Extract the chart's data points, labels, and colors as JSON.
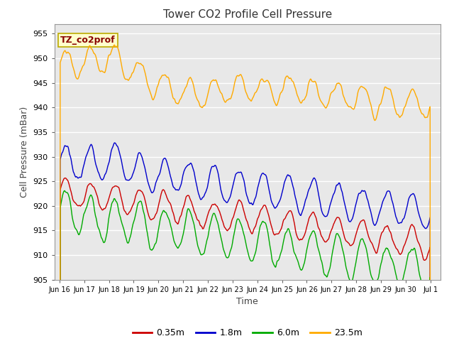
{
  "title": "Tower CO2 Profile Cell Pressure",
  "xlabel": "Time",
  "ylabel": "Cell Pressure (mBar)",
  "ylim": [
    905,
    957
  ],
  "yticks": [
    905,
    910,
    915,
    920,
    925,
    930,
    935,
    940,
    945,
    950,
    955
  ],
  "annotation_text": "TZ_co2prof",
  "annotation_text_color": "#880000",
  "annotation_bg": "#ffffcc",
  "annotation_edge": "#bbaa00",
  "bg_color": "#e8e8e8",
  "plot_bg": "#e8e8e8",
  "legend_entries": [
    "0.35m",
    "1.8m",
    "6.0m",
    "23.5m"
  ],
  "legend_colors": [
    "#cc0000",
    "#0000cc",
    "#00aa00",
    "#ffaa00"
  ],
  "line_width": 1.0,
  "x_tick_labels": [
    "Jun 16",
    "Jun 17",
    "Jun 18",
    "Jun 19",
    "Jun 20",
    "Jun 21",
    "Jun 22",
    "Jun 23",
    "Jun 24",
    "Jun 25",
    "Jun 26",
    "Jun 27",
    "Jun 28",
    "Jun 29",
    "Jun 30",
    "Jul 1"
  ],
  "num_points": 960
}
